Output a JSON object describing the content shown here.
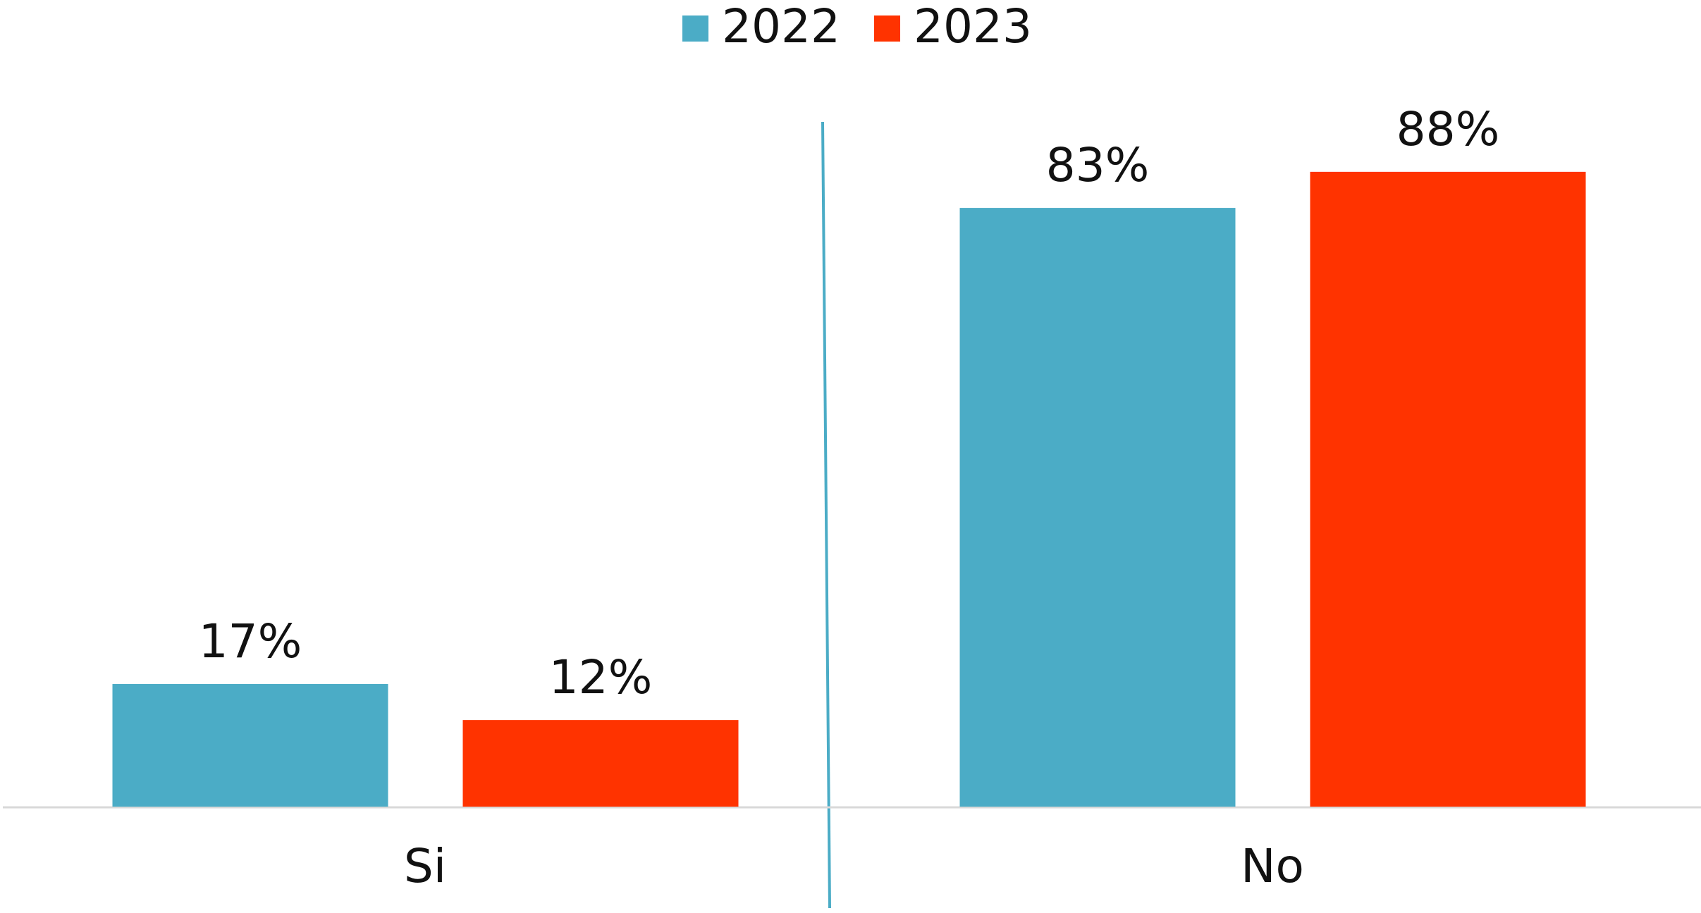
{
  "chart_data": {
    "type": "bar",
    "categories": [
      "Si",
      "No"
    ],
    "series": [
      {
        "name": "2022",
        "color": "#4bacc6",
        "values": [
          17,
          83
        ],
        "value_labels": [
          "17%",
          "83%"
        ]
      },
      {
        "name": "2023",
        "color": "#ff3300",
        "values": [
          12,
          88
        ],
        "value_labels": [
          "12%",
          "88%"
        ]
      }
    ],
    "ylim": [
      0,
      100
    ],
    "legend": "top"
  }
}
